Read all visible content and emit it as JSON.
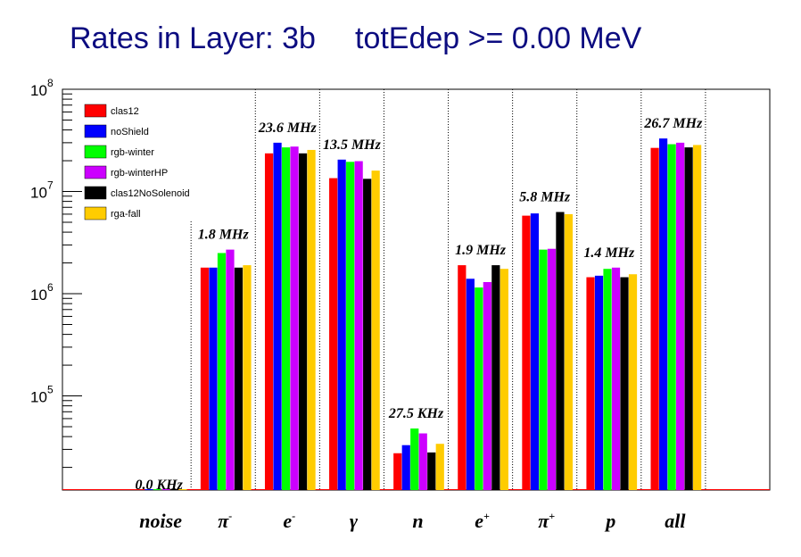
{
  "chart_data": {
    "type": "bar",
    "title": "Rates in Layer: 3b",
    "subtitle": "totEdep >= 0.00 MeV",
    "yscale": "log",
    "ylim": [
      12000,
      100000000
    ],
    "yticks": [
      {
        "value": 100000,
        "base": "10",
        "exp": "5"
      },
      {
        "value": 1000000,
        "base": "10",
        "exp": "6"
      },
      {
        "value": 10000000,
        "base": "10",
        "exp": "7"
      },
      {
        "value": 100000000,
        "base": "10",
        "exp": "8"
      }
    ],
    "categories": [
      {
        "name": "noise",
        "sup": ""
      },
      {
        "name": "π",
        "sup": "-"
      },
      {
        "name": "e",
        "sup": "-"
      },
      {
        "name": "γ",
        "sup": ""
      },
      {
        "name": "n",
        "sup": ""
      },
      {
        "name": "e",
        "sup": "+"
      },
      {
        "name": "π",
        "sup": "+"
      },
      {
        "name": "p",
        "sup": ""
      },
      {
        "name": "all",
        "sup": ""
      }
    ],
    "rate_labels": [
      "0.0 KHz",
      "1.8 MHz",
      "23.6 MHz",
      "13.5 MHz",
      "27.5 KHz",
      "1.9 MHz",
      "5.8 MHz",
      "1.4 MHz",
      "26.7 MHz"
    ],
    "series": [
      {
        "name": "clas12",
        "color": "#ff0000",
        "values": [
          0,
          1800000,
          23600000,
          13500000,
          27500,
          1900000,
          5800000,
          1450000,
          26700000
        ]
      },
      {
        "name": "noShield",
        "color": "#0000ff",
        "values": [
          0,
          1800000,
          30000000,
          20500000,
          33000,
          1400000,
          6100000,
          1500000,
          33000000
        ]
      },
      {
        "name": "rgb-winter",
        "color": "#00ff00",
        "values": [
          0,
          2500000,
          27000000,
          19500000,
          48000,
          1150000,
          2700000,
          1750000,
          29000000
        ]
      },
      {
        "name": "rgb-winterHP",
        "color": "#cc00ff",
        "values": [
          0,
          2700000,
          27500000,
          19800000,
          43000,
          1300000,
          2750000,
          1800000,
          30000000
        ]
      },
      {
        "name": "clas12NoSolenoid",
        "color": "#000000",
        "values": [
          0,
          1800000,
          23600000,
          13300000,
          28000,
          1900000,
          6300000,
          1450000,
          27000000
        ]
      },
      {
        "name": "rga-fall",
        "color": "#ffcc00",
        "values": [
          0,
          1900000,
          25500000,
          16000000,
          34000,
          1750000,
          6000000,
          1550000,
          28500000
        ]
      }
    ],
    "legend_position": "top-left",
    "grid": false
  }
}
